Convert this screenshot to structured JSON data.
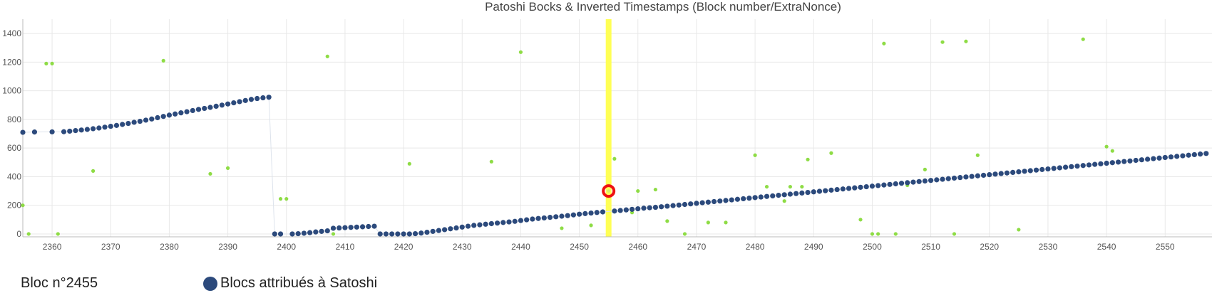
{
  "chart_data": {
    "type": "scatter",
    "title": "Patoshi Bocks & Inverted Timestamps (Block number/ExtraNonce)",
    "xlabel": "",
    "ylabel": "",
    "xlim": [
      2355,
      2558
    ],
    "ylim": [
      -20,
      1500
    ],
    "x_ticks": [
      2360,
      2370,
      2380,
      2390,
      2400,
      2410,
      2420,
      2430,
      2440,
      2450,
      2460,
      2470,
      2480,
      2490,
      2500,
      2510,
      2520,
      2530,
      2540,
      2550
    ],
    "y_ticks": [
      0,
      200,
      400,
      600,
      800,
      1000,
      1200,
      1400
    ],
    "grid": true,
    "colors": {
      "patoshi": "#2c4a7c",
      "other": "#8edc45",
      "highlight_band": "#ffff55",
      "marker": "#ee1111",
      "grid": "#e8e8e8",
      "axis": "#bbbbbb"
    },
    "highlight": {
      "x": 2455,
      "y": 300
    },
    "series": [
      {
        "name": "Blocs attribués à Satoshi",
        "points": [
          [
            2355,
            710
          ],
          [
            2357,
            712
          ],
          [
            2360,
            713
          ],
          [
            2362,
            714
          ],
          [
            2363,
            718
          ],
          [
            2364,
            722
          ],
          [
            2365,
            726
          ],
          [
            2366,
            730
          ],
          [
            2367,
            735
          ],
          [
            2368,
            740
          ],
          [
            2369,
            746
          ],
          [
            2370,
            752
          ],
          [
            2371,
            758
          ],
          [
            2372,
            765
          ],
          [
            2373,
            772
          ],
          [
            2374,
            780
          ],
          [
            2375,
            787
          ],
          [
            2376,
            795
          ],
          [
            2377,
            803
          ],
          [
            2378,
            812
          ],
          [
            2379,
            821
          ],
          [
            2380,
            830
          ],
          [
            2381,
            838
          ],
          [
            2382,
            846
          ],
          [
            2383,
            854
          ],
          [
            2384,
            862
          ],
          [
            2385,
            870
          ],
          [
            2386,
            877
          ],
          [
            2387,
            884
          ],
          [
            2388,
            892
          ],
          [
            2389,
            900
          ],
          [
            2390,
            908
          ],
          [
            2391,
            916
          ],
          [
            2392,
            924
          ],
          [
            2393,
            932
          ],
          [
            2394,
            940
          ],
          [
            2395,
            946
          ],
          [
            2396,
            951
          ],
          [
            2397,
            955
          ],
          [
            2398,
            0
          ],
          [
            2399,
            0
          ],
          [
            2401,
            0
          ],
          [
            2402,
            2
          ],
          [
            2403,
            5
          ],
          [
            2404,
            9
          ],
          [
            2405,
            14
          ],
          [
            2406,
            18
          ],
          [
            2407,
            22
          ],
          [
            2408,
            40
          ],
          [
            2409,
            42
          ],
          [
            2410,
            44
          ],
          [
            2411,
            46
          ],
          [
            2412,
            48
          ],
          [
            2413,
            50
          ],
          [
            2414,
            52
          ],
          [
            2415,
            54
          ],
          [
            2416,
            0
          ],
          [
            2417,
            0
          ],
          [
            2418,
            0
          ],
          [
            2419,
            0
          ],
          [
            2420,
            0
          ],
          [
            2421,
            0
          ],
          [
            2422,
            2
          ],
          [
            2423,
            6
          ],
          [
            2424,
            12
          ],
          [
            2425,
            18
          ],
          [
            2426,
            24
          ],
          [
            2427,
            30
          ],
          [
            2428,
            36
          ],
          [
            2429,
            42
          ],
          [
            2430,
            48
          ],
          [
            2431,
            54
          ],
          [
            2432,
            60
          ],
          [
            2433,
            64
          ],
          [
            2434,
            68
          ],
          [
            2435,
            72
          ],
          [
            2436,
            76
          ],
          [
            2437,
            80
          ],
          [
            2438,
            84
          ],
          [
            2439,
            88
          ],
          [
            2440,
            94
          ],
          [
            2441,
            99
          ],
          [
            2442,
            104
          ],
          [
            2443,
            108
          ],
          [
            2444,
            112
          ],
          [
            2445,
            116
          ],
          [
            2446,
            120
          ],
          [
            2447,
            124
          ],
          [
            2448,
            128
          ],
          [
            2449,
            133
          ],
          [
            2450,
            138
          ],
          [
            2451,
            142
          ],
          [
            2452,
            146
          ],
          [
            2453,
            150
          ],
          [
            2454,
            154
          ],
          [
            2456,
            160
          ],
          [
            2457,
            164
          ],
          [
            2458,
            168
          ],
          [
            2459,
            172
          ],
          [
            2460,
            176
          ],
          [
            2461,
            180
          ],
          [
            2462,
            183
          ],
          [
            2463,
            186
          ],
          [
            2464,
            190
          ],
          [
            2465,
            194
          ],
          [
            2466,
            198
          ],
          [
            2467,
            202
          ],
          [
            2468,
            206
          ],
          [
            2469,
            210
          ],
          [
            2470,
            214
          ],
          [
            2471,
            218
          ],
          [
            2472,
            222
          ],
          [
            2473,
            226
          ],
          [
            2474,
            230
          ],
          [
            2475,
            234
          ],
          [
            2476,
            238
          ],
          [
            2477,
            242
          ],
          [
            2478,
            246
          ],
          [
            2479,
            250
          ],
          [
            2480,
            254
          ],
          [
            2481,
            258
          ],
          [
            2482,
            262
          ],
          [
            2483,
            266
          ],
          [
            2484,
            270
          ],
          [
            2485,
            274
          ],
          [
            2486,
            278
          ],
          [
            2487,
            282
          ],
          [
            2488,
            286
          ],
          [
            2489,
            290
          ],
          [
            2490,
            294
          ],
          [
            2491,
            298
          ],
          [
            2492,
            302
          ],
          [
            2493,
            306
          ],
          [
            2494,
            310
          ],
          [
            2495,
            314
          ],
          [
            2496,
            318
          ],
          [
            2497,
            322
          ],
          [
            2498,
            326
          ],
          [
            2499,
            330
          ],
          [
            2500,
            334
          ],
          [
            2501,
            338
          ],
          [
            2502,
            342
          ],
          [
            2503,
            346
          ],
          [
            2504,
            350
          ],
          [
            2505,
            354
          ],
          [
            2506,
            358
          ],
          [
            2507,
            362
          ],
          [
            2508,
            366
          ],
          [
            2509,
            370
          ],
          [
            2510,
            374
          ],
          [
            2511,
            378
          ],
          [
            2512,
            382
          ],
          [
            2513,
            386
          ],
          [
            2514,
            390
          ],
          [
            2515,
            394
          ],
          [
            2516,
            398
          ],
          [
            2517,
            402
          ],
          [
            2518,
            406
          ],
          [
            2519,
            410
          ],
          [
            2520,
            414
          ],
          [
            2521,
            418
          ],
          [
            2522,
            422
          ],
          [
            2523,
            426
          ],
          [
            2524,
            430
          ],
          [
            2525,
            434
          ],
          [
            2526,
            438
          ],
          [
            2527,
            442
          ],
          [
            2528,
            446
          ],
          [
            2529,
            450
          ],
          [
            2530,
            454
          ],
          [
            2531,
            458
          ],
          [
            2532,
            462
          ],
          [
            2533,
            466
          ],
          [
            2534,
            470
          ],
          [
            2535,
            474
          ],
          [
            2536,
            478
          ],
          [
            2537,
            482
          ],
          [
            2538,
            486
          ],
          [
            2539,
            490
          ],
          [
            2540,
            494
          ],
          [
            2541,
            498
          ],
          [
            2542,
            502
          ],
          [
            2543,
            506
          ],
          [
            2544,
            510
          ],
          [
            2545,
            514
          ],
          [
            2546,
            518
          ],
          [
            2547,
            522
          ],
          [
            2548,
            526
          ],
          [
            2549,
            530
          ],
          [
            2550,
            534
          ],
          [
            2551,
            538
          ],
          [
            2552,
            542
          ],
          [
            2553,
            546
          ],
          [
            2554,
            550
          ],
          [
            2555,
            554
          ],
          [
            2556,
            558
          ],
          [
            2557,
            562
          ]
        ]
      },
      {
        "name": "",
        "points": [
          [
            2355,
            200
          ],
          [
            2356,
            0
          ],
          [
            2359,
            1190
          ],
          [
            2360,
            1190
          ],
          [
            2361,
            0
          ],
          [
            2367,
            440
          ],
          [
            2379,
            1210
          ],
          [
            2387,
            420
          ],
          [
            2390,
            460
          ],
          [
            2399,
            245
          ],
          [
            2400,
            245
          ],
          [
            2407,
            1240
          ],
          [
            2408,
            0
          ],
          [
            2421,
            490
          ],
          [
            2435,
            505
          ],
          [
            2440,
            1270
          ],
          [
            2447,
            40
          ],
          [
            2452,
            60
          ],
          [
            2456,
            525
          ],
          [
            2459,
            150
          ],
          [
            2460,
            300
          ],
          [
            2463,
            310
          ],
          [
            2465,
            90
          ],
          [
            2468,
            0
          ],
          [
            2472,
            80
          ],
          [
            2475,
            80
          ],
          [
            2480,
            550
          ],
          [
            2482,
            330
          ],
          [
            2485,
            230
          ],
          [
            2486,
            330
          ],
          [
            2488,
            330
          ],
          [
            2489,
            520
          ],
          [
            2493,
            565
          ],
          [
            2498,
            100
          ],
          [
            2500,
            0
          ],
          [
            2501,
            0
          ],
          [
            2502,
            1330
          ],
          [
            2504,
            0
          ],
          [
            2506,
            340
          ],
          [
            2509,
            450
          ],
          [
            2512,
            1340
          ],
          [
            2514,
            0
          ],
          [
            2516,
            1345
          ],
          [
            2518,
            550
          ],
          [
            2525,
            30
          ],
          [
            2536,
            1360
          ],
          [
            2540,
            610
          ],
          [
            2541,
            580
          ]
        ]
      }
    ]
  },
  "footer": {
    "bloc_label": "Bloc n°2455",
    "legend_label": "Blocs attribués à Satoshi"
  }
}
